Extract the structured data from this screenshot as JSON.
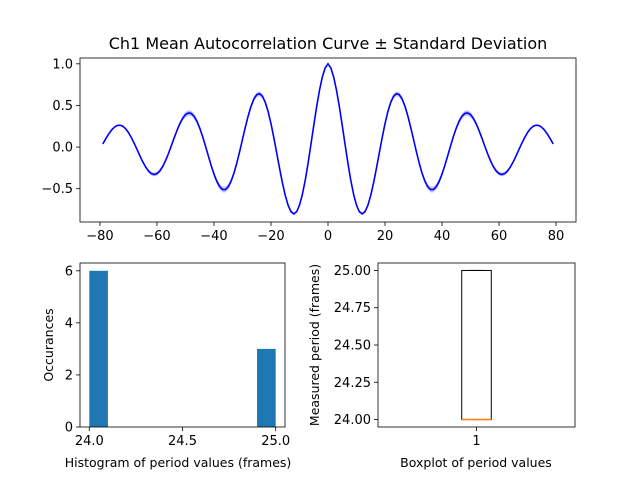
{
  "chart_data": [
    {
      "type": "line",
      "title": "Ch1 Mean Autocorrelation Curve ± Standard Deviation",
      "xlabel": "",
      "ylabel": "",
      "xlim": [
        -87,
        87
      ],
      "ylim": [
        -0.9,
        1.07
      ],
      "xticks": [
        -80,
        -60,
        -40,
        -20,
        0,
        20,
        40,
        60,
        80
      ],
      "xtick_labels": [
        "−80",
        "−60",
        "−40",
        "−20",
        "0",
        "20",
        "40",
        "60",
        "80"
      ],
      "yticks": [
        -0.5,
        0.0,
        0.5,
        1.0
      ],
      "ytick_labels": [
        "−0.5",
        "0.0",
        "0.5",
        "1.0"
      ],
      "grid": false,
      "color": "#0000ff",
      "band_color": "#b8b8ff",
      "x_range": [
        -79,
        79
      ],
      "x_step": 1,
      "model": {
        "period": 24.5,
        "decay_tau": 55,
        "std_peak": 0.035
      },
      "key_points": [
        {
          "x": 0,
          "y": 1.0
        },
        {
          "x": -12,
          "y": -0.78
        },
        {
          "x": 12,
          "y": -0.78
        },
        {
          "x": -25,
          "y": 0.67
        },
        {
          "x": 25,
          "y": 0.67
        },
        {
          "x": -37,
          "y": -0.48
        },
        {
          "x": 37,
          "y": -0.48
        },
        {
          "x": -49,
          "y": 0.34
        },
        {
          "x": 49,
          "y": 0.34
        },
        {
          "x": -61,
          "y": -0.2
        },
        {
          "x": 61,
          "y": -0.2
        },
        {
          "x": -72,
          "y": 0.07
        },
        {
          "x": 72,
          "y": 0.07
        },
        {
          "x": -79,
          "y": 0.0
        },
        {
          "x": 79,
          "y": 0.0
        }
      ]
    },
    {
      "type": "bar",
      "title": "",
      "xlabel": "Histogram of period values (frames)",
      "ylabel": "Occurances",
      "xlim": [
        23.95,
        25.05
      ],
      "ylim": [
        0,
        6.3
      ],
      "xticks": [
        24.0,
        24.5,
        25.0
      ],
      "xtick_labels": [
        "24.0",
        "24.5",
        "25.0"
      ],
      "yticks": [
        0,
        2,
        4,
        6
      ],
      "ytick_labels": [
        "0",
        "2",
        "4",
        "6"
      ],
      "color": "#1f77b4",
      "bins": [
        {
          "x0": 24.0,
          "x1": 24.1,
          "count": 6
        },
        {
          "x0": 24.1,
          "x1": 24.2,
          "count": 0
        },
        {
          "x0": 24.2,
          "x1": 24.3,
          "count": 0
        },
        {
          "x0": 24.3,
          "x1": 24.4,
          "count": 0
        },
        {
          "x0": 24.4,
          "x1": 24.5,
          "count": 0
        },
        {
          "x0": 24.5,
          "x1": 24.6,
          "count": 0
        },
        {
          "x0": 24.6,
          "x1": 24.7,
          "count": 0
        },
        {
          "x0": 24.7,
          "x1": 24.8,
          "count": 0
        },
        {
          "x0": 24.8,
          "x1": 24.9,
          "count": 0
        },
        {
          "x0": 24.9,
          "x1": 25.0,
          "count": 3
        }
      ]
    },
    {
      "type": "box",
      "title": "",
      "xlabel": "Boxplot of period values",
      "ylabel": "Measured period (frames)",
      "xlim": [
        0.5,
        1.5
      ],
      "ylim": [
        23.95,
        25.05
      ],
      "xticks": [
        1
      ],
      "xtick_labels": [
        "1"
      ],
      "yticks": [
        24.0,
        24.25,
        24.5,
        24.75,
        25.0
      ],
      "ytick_labels": [
        "24.00",
        "24.25",
        "24.50",
        "24.75",
        "25.00"
      ],
      "box": {
        "position": 1,
        "min": 24.0,
        "q1": 24.0,
        "median": 24.0,
        "q3": 25.0,
        "max": 25.0
      },
      "median_color": "#ff7f0e"
    }
  ]
}
